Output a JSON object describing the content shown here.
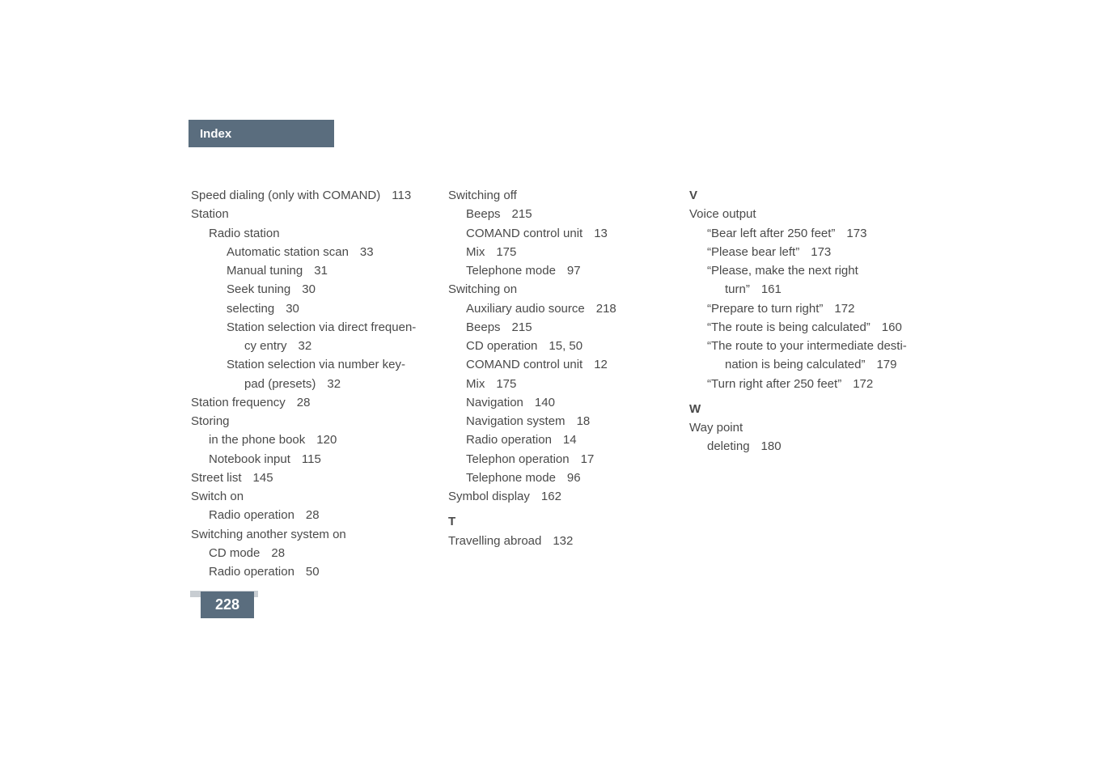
{
  "header": {
    "title": "Index"
  },
  "page_number": "228",
  "columns": {
    "col1": {
      "entries": [
        {
          "text": "Speed dialing (only with COMAND)",
          "page": "113",
          "indent": 0
        },
        {
          "text": "Station",
          "page": "",
          "indent": 0
        },
        {
          "text": "Radio station",
          "page": "",
          "indent": 1
        },
        {
          "text": "Automatic station scan",
          "page": "33",
          "indent": 2
        },
        {
          "text": "Manual tuning",
          "page": "31",
          "indent": 2
        },
        {
          "text": "Seek tuning",
          "page": "30",
          "indent": 2
        },
        {
          "text": "selecting",
          "page": "30",
          "indent": 2
        },
        {
          "text": "Station selection via direct frequen-",
          "page": "",
          "indent": 2
        },
        {
          "text": "cy entry",
          "page": "32",
          "indent": 3
        },
        {
          "text": "Station selection via number key-",
          "page": "",
          "indent": 2
        },
        {
          "text": "pad (presets)",
          "page": "32",
          "indent": 3
        },
        {
          "text": "Station frequency",
          "page": "28",
          "indent": 0
        },
        {
          "text": "Storing",
          "page": "",
          "indent": 0
        },
        {
          "text": "in the phone book",
          "page": "120",
          "indent": 1
        },
        {
          "text": "Notebook input",
          "page": "115",
          "indent": 1
        },
        {
          "text": "Street list",
          "page": "145",
          "indent": 0
        },
        {
          "text": "Switch on",
          "page": "",
          "indent": 0
        },
        {
          "text": "Radio operation",
          "page": "28",
          "indent": 1
        },
        {
          "text": "Switching another system on",
          "page": "",
          "indent": 0
        },
        {
          "text": "CD mode",
          "page": "28",
          "indent": 1
        },
        {
          "text": "Radio operation",
          "page": "50",
          "indent": 1
        }
      ]
    },
    "col2": {
      "entries": [
        {
          "text": "Switching off",
          "page": "",
          "indent": 0
        },
        {
          "text": "Beeps",
          "page": "215",
          "indent": 1
        },
        {
          "text": "COMAND control unit",
          "page": "13",
          "indent": 1
        },
        {
          "text": "Mix",
          "page": "175",
          "indent": 1
        },
        {
          "text": "Telephone mode",
          "page": "97",
          "indent": 1
        },
        {
          "text": "Switching on",
          "page": "",
          "indent": 0
        },
        {
          "text": "Auxiliary audio source",
          "page": "218",
          "indent": 1
        },
        {
          "text": "Beeps",
          "page": "215",
          "indent": 1
        },
        {
          "text": "CD operation",
          "page": "15, 50",
          "indent": 1
        },
        {
          "text": "COMAND control unit",
          "page": "12",
          "indent": 1
        },
        {
          "text": "Mix",
          "page": "175",
          "indent": 1
        },
        {
          "text": "Navigation",
          "page": "140",
          "indent": 1
        },
        {
          "text": "Navigation system",
          "page": "18",
          "indent": 1
        },
        {
          "text": "Radio operation",
          "page": "14",
          "indent": 1
        },
        {
          "text": "Telephon operation",
          "page": "17",
          "indent": 1
        },
        {
          "text": "Telephone mode",
          "page": "96",
          "indent": 1
        },
        {
          "text": "Symbol display",
          "page": "162",
          "indent": 0
        }
      ],
      "section_t": {
        "letter": "T",
        "entries": [
          {
            "text": "Travelling abroad",
            "page": "132",
            "indent": 0
          }
        ]
      }
    },
    "col3": {
      "section_v": {
        "letter": "V",
        "entries": [
          {
            "text": "Voice output",
            "page": "",
            "indent": 0
          },
          {
            "text": "“Bear left after 250 feet”",
            "page": "173",
            "indent": 1
          },
          {
            "text": "“Please bear left”",
            "page": "173",
            "indent": 1
          },
          {
            "text": "“Please, make the next right",
            "page": "",
            "indent": 1
          },
          {
            "text": "turn”",
            "page": "161",
            "indent": 2
          },
          {
            "text": "“Prepare to turn right”",
            "page": "172",
            "indent": 1
          },
          {
            "text": "“The route is being calculated”",
            "page": "160",
            "indent": 1
          },
          {
            "text": "“The route to your intermediate desti-",
            "page": "",
            "indent": 1
          },
          {
            "text": "nation is being calculated”",
            "page": "179",
            "indent": 2
          },
          {
            "text": "“Turn right after 250 feet”",
            "page": "172",
            "indent": 1
          }
        ]
      },
      "section_w": {
        "letter": "W",
        "entries": [
          {
            "text": "Way point",
            "page": "",
            "indent": 0
          },
          {
            "text": "deleting",
            "page": "180",
            "indent": 1
          }
        ]
      }
    }
  },
  "styling": {
    "background_color": "#ffffff",
    "header_bg": "#5a6d7e",
    "header_text_color": "#ffffff",
    "body_text_color": "#4a4a4a",
    "page_number_bg": "#5a6d7e",
    "stripe_color": "#c8cdd2",
    "body_fontsize": 15,
    "header_fontsize": 15,
    "pagenum_fontsize": 18
  }
}
